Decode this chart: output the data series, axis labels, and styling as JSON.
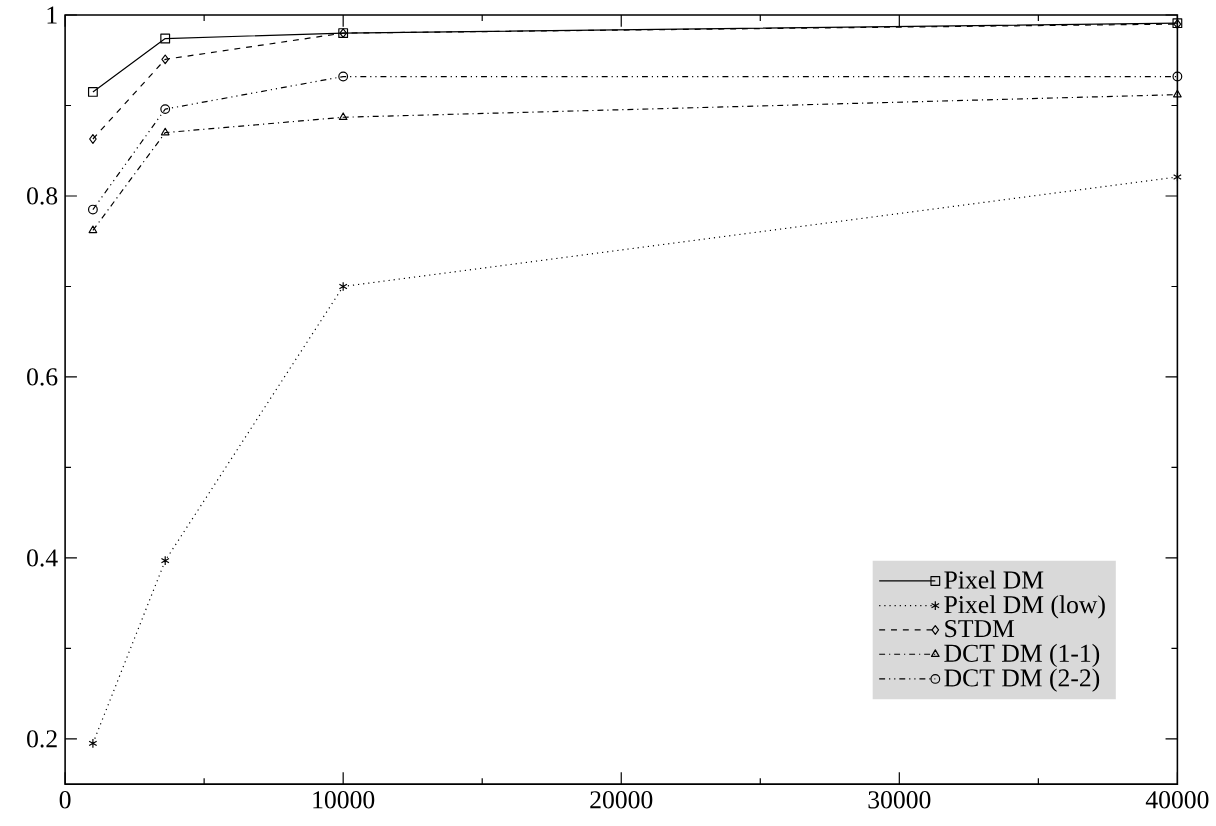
{
  "chart_data": {
    "type": "line",
    "x": [
      1000,
      3600,
      10000,
      40000
    ],
    "series": [
      {
        "name": "Pixel DM",
        "color": "#000000",
        "marker": "square",
        "line_style": "solid",
        "values": [
          0.915,
          0.974,
          0.98,
          0.991
        ]
      },
      {
        "name": "Pixel DM (low)",
        "color": "#000000",
        "marker": "cross",
        "line_style": "dotted",
        "values": [
          0.195,
          0.397,
          0.7,
          0.821
        ]
      },
      {
        "name": "STDM",
        "color": "#000000",
        "marker": "diamond",
        "line_style": "dashed",
        "values": [
          0.863,
          0.951,
          0.98,
          0.99
        ]
      },
      {
        "name": "DCT DM (1-1)",
        "color": "#000000",
        "marker": "triangle",
        "line_style": "dashdot",
        "values": [
          0.762,
          0.87,
          0.887,
          0.912
        ]
      },
      {
        "name": "DCT DM (2-2)",
        "color": "#000000",
        "marker": "circle",
        "line_style": "dashdotdot",
        "values": [
          0.785,
          0.896,
          0.932,
          0.932
        ]
      }
    ],
    "xlim": [
      0,
      40000
    ],
    "xticks": [
      0,
      10000,
      20000,
      30000,
      40000
    ],
    "ylim": [
      0.15,
      1
    ],
    "yticks": [
      0.2,
      0.4,
      0.6,
      0.8,
      1
    ],
    "grid": false,
    "legend": "bottom right"
  }
}
